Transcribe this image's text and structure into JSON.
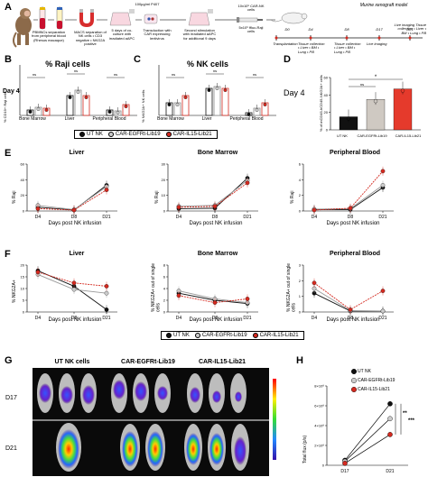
{
  "colors": {
    "ut": "#111111",
    "egfrt": "#cccccc",
    "il15": "#d42a20",
    "rajiIcon": "#cfe0c8"
  },
  "panelA": {
    "label": "A",
    "steps": [
      "PBMNCs separation from peripheral blood (Rhesus macaque)",
      "MACS separation of NK cells • CD3 negative • NKG2A positive",
      "5 days of co-culture with irradiated aAPC",
      "Transduction with CAR expressing lentivirus",
      "Second stimulation with irradiated aAPC for additional 9 days"
    ],
    "dose_label": "100µg/ml P407",
    "cars": "10x10⁶ CAR-NK cells",
    "raji": "5x10⁶ ffluc-Raji cells",
    "model_title": "Murine xenograft model",
    "timeline": [
      {
        "day": "D0",
        "text": "Transplantation"
      },
      {
        "day": "D4",
        "text": "Tissue collection • Liver • BM • Lung • PB"
      },
      {
        "day": "D8",
        "text": "Tissue collection • Liver • BM • Lung • PB"
      },
      {
        "day": "D17",
        "text": "Live imaging"
      },
      {
        "day": "D21",
        "text": "Live imaging Tissue collection • Liver • BM • Lung • PB"
      }
    ]
  },
  "panelB": {
    "label": "B",
    "title": "% Raji cells",
    "ylabel": "% CD19+ Raji cells",
    "row": "Day 4",
    "groups": [
      "Bone Marrow",
      "Liver",
      "Peripheral Blood"
    ],
    "ns": "ns",
    "star": "*"
  },
  "panelC": {
    "label": "C",
    "title": "% NK cells",
    "ylabel": "% NKG2A+ NK cells",
    "groups": [
      "Bone Marrow",
      "Liver",
      "Peripheral Blood"
    ],
    "ns": "ns"
  },
  "panelD": {
    "label": "D",
    "title": "Day 4",
    "ylabel": "% of mCD45-hCD45-NKG2A+ cells",
    "star": "*",
    "ns": "ns",
    "chart_data": {
      "type": "bar",
      "categories": [
        "UT NK",
        "CAR-EGFRt-Lib19",
        "CAR-IL15-Lib21"
      ],
      "values": [
        15,
        35,
        47
      ],
      "ylim": [
        0,
        60
      ]
    }
  },
  "legend": {
    "items": [
      "UT NK",
      "CAR-EGFRt-Lib19",
      "CAR-IL15-Lib21"
    ]
  },
  "panelE": {
    "label": "E",
    "ylabel": "% Raji",
    "xlabel": "Days post NK infusion",
    "charts": [
      {
        "title": "Liver",
        "x": [
          "D4",
          "D8",
          "D21"
        ]
      },
      {
        "title": "Bone Marrow",
        "x": [
          "D4",
          "D8",
          "D21"
        ]
      },
      {
        "title": "Peripheral Blood",
        "x": [
          "D4",
          "D8",
          "D21"
        ]
      }
    ]
  },
  "panelF": {
    "label": "F",
    "xlabel": "Days post NK infusion",
    "charts": [
      {
        "title": "Liver",
        "ylabel": "% NKG2A+",
        "x": [
          "D4",
          "D8",
          "D21"
        ]
      },
      {
        "title": "Bone Marrow",
        "ylabel": "% NKG2A+ out of single cells",
        "x": [
          "D4",
          "D8",
          "D21"
        ]
      },
      {
        "title": "Peripheral Blood",
        "ylabel": "% NKG2A+ out of single cells",
        "x": [
          "D4",
          "D8",
          "D21"
        ]
      }
    ]
  },
  "panelG": {
    "label": "G",
    "columns": [
      "UT NK cells",
      "CAR-EGFRt-Lib19",
      "CAR-IL15-Lib21"
    ],
    "rows": [
      "D17",
      "D21"
    ]
  },
  "panelH": {
    "label": "H",
    "ylabel": "Total flux (p/s)",
    "x": [
      "D17",
      "D21"
    ],
    "sig1": "**",
    "sig2": "***",
    "ticks": [
      "8×10⁸",
      "6×10⁸",
      "4×10⁸",
      "2×10⁸",
      "0"
    ],
    "legend": [
      "UT NK",
      "CAR-EGFRt-Lib19",
      "CAR-IL15-Lib21"
    ],
    "chart_data": {
      "type": "line",
      "x": [
        "D17",
        "D21"
      ],
      "ylim": [
        0,
        800000000
      ],
      "series": [
        {
          "name": "UT NK",
          "values": [
            50000000,
            620000000
          ]
        },
        {
          "name": "CAR-EGFRt-Lib19",
          "values": [
            40000000,
            470000000
          ]
        },
        {
          "name": "CAR-IL15-Lib21",
          "values": [
            20000000,
            310000000
          ]
        }
      ]
    }
  }
}
